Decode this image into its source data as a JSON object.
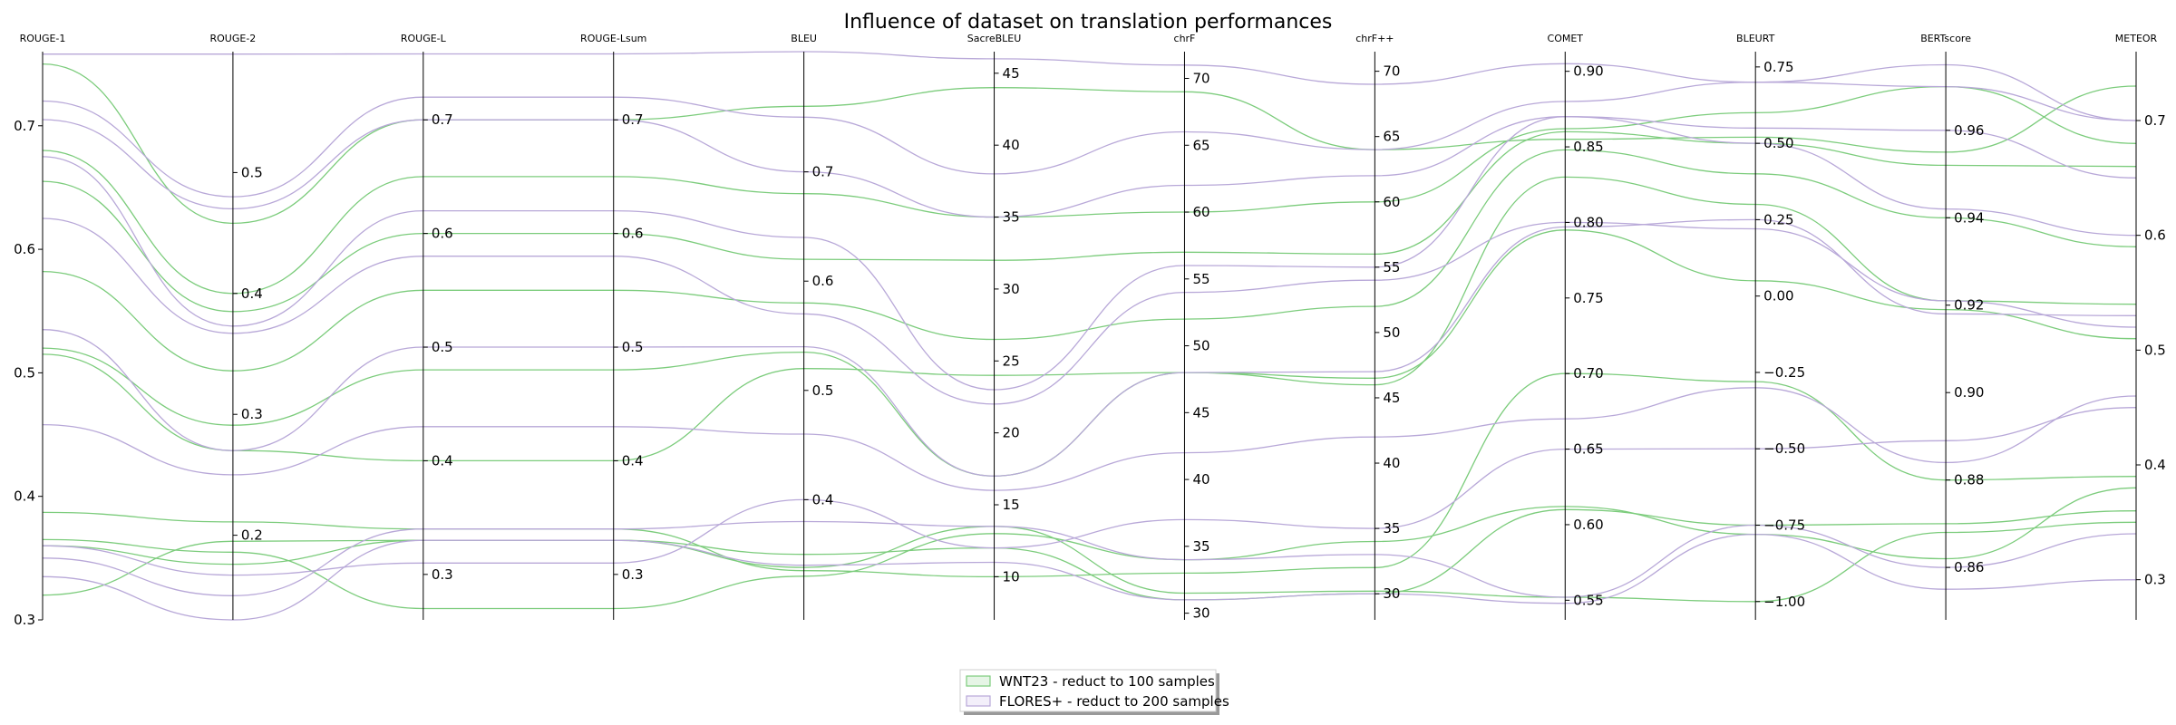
{
  "chart_data": {
    "type": "parallel-coordinates",
    "title": "Influence of dataset on translation performances",
    "axes": [
      {
        "name": "ROUGE-1",
        "range": [
          0.3,
          0.76
        ],
        "ticks": [
          0.3,
          0.4,
          0.5,
          0.6,
          0.7
        ],
        "tick_labels": [
          "0.3",
          "0.4",
          "0.5",
          "0.6",
          "0.7"
        ],
        "tick_side": "left"
      },
      {
        "name": "ROUGE-2",
        "range": [
          0.13,
          0.6
        ],
        "ticks": [
          0.2,
          0.3,
          0.4,
          0.5
        ],
        "tick_labels": [
          "0.2",
          "0.3",
          "0.4",
          "0.5"
        ],
        "tick_side": "right"
      },
      {
        "name": "ROUGE-L",
        "range": [
          0.26,
          0.76
        ],
        "ticks": [
          0.3,
          0.4,
          0.5,
          0.6,
          0.7
        ],
        "tick_labels": [
          "0.3",
          "0.4",
          "0.5",
          "0.6",
          "0.7"
        ],
        "tick_side": "right"
      },
      {
        "name": "ROUGE-Lsum",
        "range": [
          0.26,
          0.76
        ],
        "ticks": [
          0.3,
          0.4,
          0.5,
          0.6,
          0.7
        ],
        "tick_labels": [
          "0.3",
          "0.4",
          "0.5",
          "0.6",
          "0.7"
        ],
        "tick_side": "right"
      },
      {
        "name": "BLEU",
        "range": [
          0.29,
          0.81
        ],
        "ticks": [
          0.4,
          0.5,
          0.6,
          0.7
        ],
        "tick_labels": [
          "0.4",
          "0.5",
          "0.6",
          "0.7"
        ],
        "tick_side": "right"
      },
      {
        "name": "SacreBLEU",
        "range": [
          7,
          46.5
        ],
        "ticks": [
          10,
          15,
          20,
          25,
          30,
          35,
          40,
          45
        ],
        "tick_labels": [
          "10",
          "15",
          "20",
          "25",
          "30",
          "35",
          "40",
          "45"
        ],
        "tick_side": "right"
      },
      {
        "name": "chrF",
        "range": [
          29.5,
          72
        ],
        "ticks": [
          30,
          35,
          40,
          45,
          50,
          55,
          60,
          65,
          70
        ],
        "tick_labels": [
          "30",
          "35",
          "40",
          "45",
          "50",
          "55",
          "60",
          "65",
          "70"
        ],
        "tick_side": "right"
      },
      {
        "name": "chrF++",
        "range": [
          28,
          71.5
        ],
        "ticks": [
          30,
          35,
          40,
          45,
          50,
          55,
          60,
          65,
          70
        ],
        "tick_labels": [
          "30",
          "35",
          "40",
          "45",
          "50",
          "55",
          "60",
          "65",
          "70"
        ],
        "tick_side": "right"
      },
      {
        "name": "COMET",
        "range": [
          0.537,
          0.913
        ],
        "ticks": [
          0.55,
          0.6,
          0.65,
          0.7,
          0.75,
          0.8,
          0.85,
          0.9
        ],
        "tick_labels": [
          "0.55",
          "0.60",
          "0.65",
          "0.70",
          "0.75",
          "0.80",
          "0.85",
          "0.90"
        ],
        "tick_side": "right"
      },
      {
        "name": "BLEURT",
        "range": [
          -1.06,
          0.8
        ],
        "ticks": [
          -1.0,
          -0.75,
          -0.5,
          -0.25,
          0.0,
          0.25,
          0.5,
          0.75
        ],
        "tick_labels": [
          "−1.00",
          "−0.75",
          "−0.50",
          "−0.25",
          "0.00",
          "0.25",
          "0.50",
          "0.75"
        ],
        "tick_side": "right"
      },
      {
        "name": "BERTscore",
        "range": [
          0.848,
          0.978
        ],
        "ticks": [
          0.86,
          0.88,
          0.9,
          0.92,
          0.94,
          0.96
        ],
        "tick_labels": [
          "0.86",
          "0.88",
          "0.90",
          "0.92",
          "0.94",
          "0.96"
        ],
        "tick_side": "right"
      },
      {
        "name": "METEOR",
        "range": [
          0.265,
          0.76
        ],
        "ticks": [
          0.3,
          0.4,
          0.5,
          0.6,
          0.7
        ],
        "tick_labels": [
          "0.3",
          "0.4",
          "0.5",
          "0.6",
          "0.7"
        ],
        "tick_side": "right"
      }
    ],
    "series": [
      {
        "name": "WNT23 - reduct to 100 samples",
        "color": "#7ccc7c",
        "lines": [
          [
            0.75,
            0.458,
            0.7,
            0.7,
            0.76,
            44.0,
            69.0,
            64.0,
            0.855,
            0.52,
            0.955,
            0.73
          ],
          [
            0.68,
            0.4,
            0.65,
            0.65,
            0.68,
            35.0,
            60.0,
            60.0,
            0.862,
            0.6,
            0.97,
            0.68
          ],
          [
            0.655,
            0.385,
            0.6,
            0.6,
            0.62,
            32.0,
            57.0,
            56.0,
            0.86,
            0.5,
            0.952,
            0.66
          ],
          [
            0.582,
            0.336,
            0.55,
            0.55,
            0.58,
            26.5,
            52.0,
            52.0,
            0.848,
            0.4,
            0.94,
            0.59
          ],
          [
            0.52,
            0.291,
            0.48,
            0.48,
            0.535,
            17.0,
            48.0,
            46.0,
            0.83,
            0.3,
            0.921,
            0.54
          ],
          [
            0.515,
            0.27,
            0.4,
            0.4,
            0.52,
            24.0,
            48.0,
            46.5,
            0.795,
            0.05,
            0.919,
            0.51
          ],
          [
            0.387,
            0.211,
            0.34,
            0.34,
            0.335,
            10.0,
            33.0,
            32.0,
            0.7,
            -0.28,
            0.88,
            0.39
          ],
          [
            0.36,
            0.176,
            0.33,
            0.33,
            0.35,
            12.0,
            31.0,
            30.0,
            0.61,
            -0.75,
            0.87,
            0.36
          ],
          [
            0.365,
            0.186,
            0.27,
            0.27,
            0.33,
            13.0,
            34.0,
            34.0,
            0.612,
            -0.78,
            0.862,
            0.38
          ],
          [
            0.32,
            0.195,
            0.33,
            0.33,
            0.338,
            13.5,
            31.5,
            30.2,
            0.552,
            -1.0,
            0.868,
            0.35
          ]
        ]
      },
      {
        "name": "FLORES+ - reduct to 200 samples",
        "color": "#b8a8d8",
        "lines": [
          [
            0.758,
            0.598,
            0.758,
            0.758,
            0.81,
            46.0,
            71.0,
            69.0,
            0.905,
            0.7,
            0.975,
            0.7
          ],
          [
            0.72,
            0.48,
            0.72,
            0.72,
            0.75,
            38.0,
            66.0,
            64.0,
            0.88,
            0.7,
            0.97,
            0.7
          ],
          [
            0.705,
            0.47,
            0.7,
            0.7,
            0.7,
            35.0,
            62.0,
            62.0,
            0.87,
            0.55,
            0.96,
            0.65
          ],
          [
            0.675,
            0.373,
            0.62,
            0.62,
            0.64,
            23.0,
            56.0,
            55.0,
            0.87,
            0.5,
            0.942,
            0.6
          ],
          [
            0.625,
            0.367,
            0.58,
            0.58,
            0.57,
            22.0,
            54.0,
            54.0,
            0.8,
            0.22,
            0.921,
            0.52
          ],
          [
            0.535,
            0.27,
            0.5,
            0.5,
            0.54,
            17.0,
            48.0,
            47.0,
            0.797,
            0.25,
            0.918,
            0.53
          ],
          [
            0.458,
            0.25,
            0.43,
            0.43,
            0.46,
            16.0,
            42.0,
            42.0,
            0.67,
            -0.3,
            0.884,
            0.46
          ],
          [
            0.36,
            0.167,
            0.31,
            0.31,
            0.4,
            12.0,
            37.0,
            35.0,
            0.65,
            -0.5,
            0.889,
            0.45
          ],
          [
            0.35,
            0.15,
            0.34,
            0.34,
            0.38,
            13.5,
            34.0,
            33.0,
            0.552,
            -0.75,
            0.86,
            0.34
          ],
          [
            0.335,
            0.13,
            0.33,
            0.33,
            0.34,
            11.0,
            31.0,
            30.0,
            0.548,
            -0.78,
            0.855,
            0.3
          ]
        ]
      }
    ],
    "legend": {
      "placement": "bottom-center",
      "entries": [
        "WNT23 - reduct to 100 samples",
        "FLORES+ - reduct to 200 samples"
      ]
    },
    "grid": false
  }
}
